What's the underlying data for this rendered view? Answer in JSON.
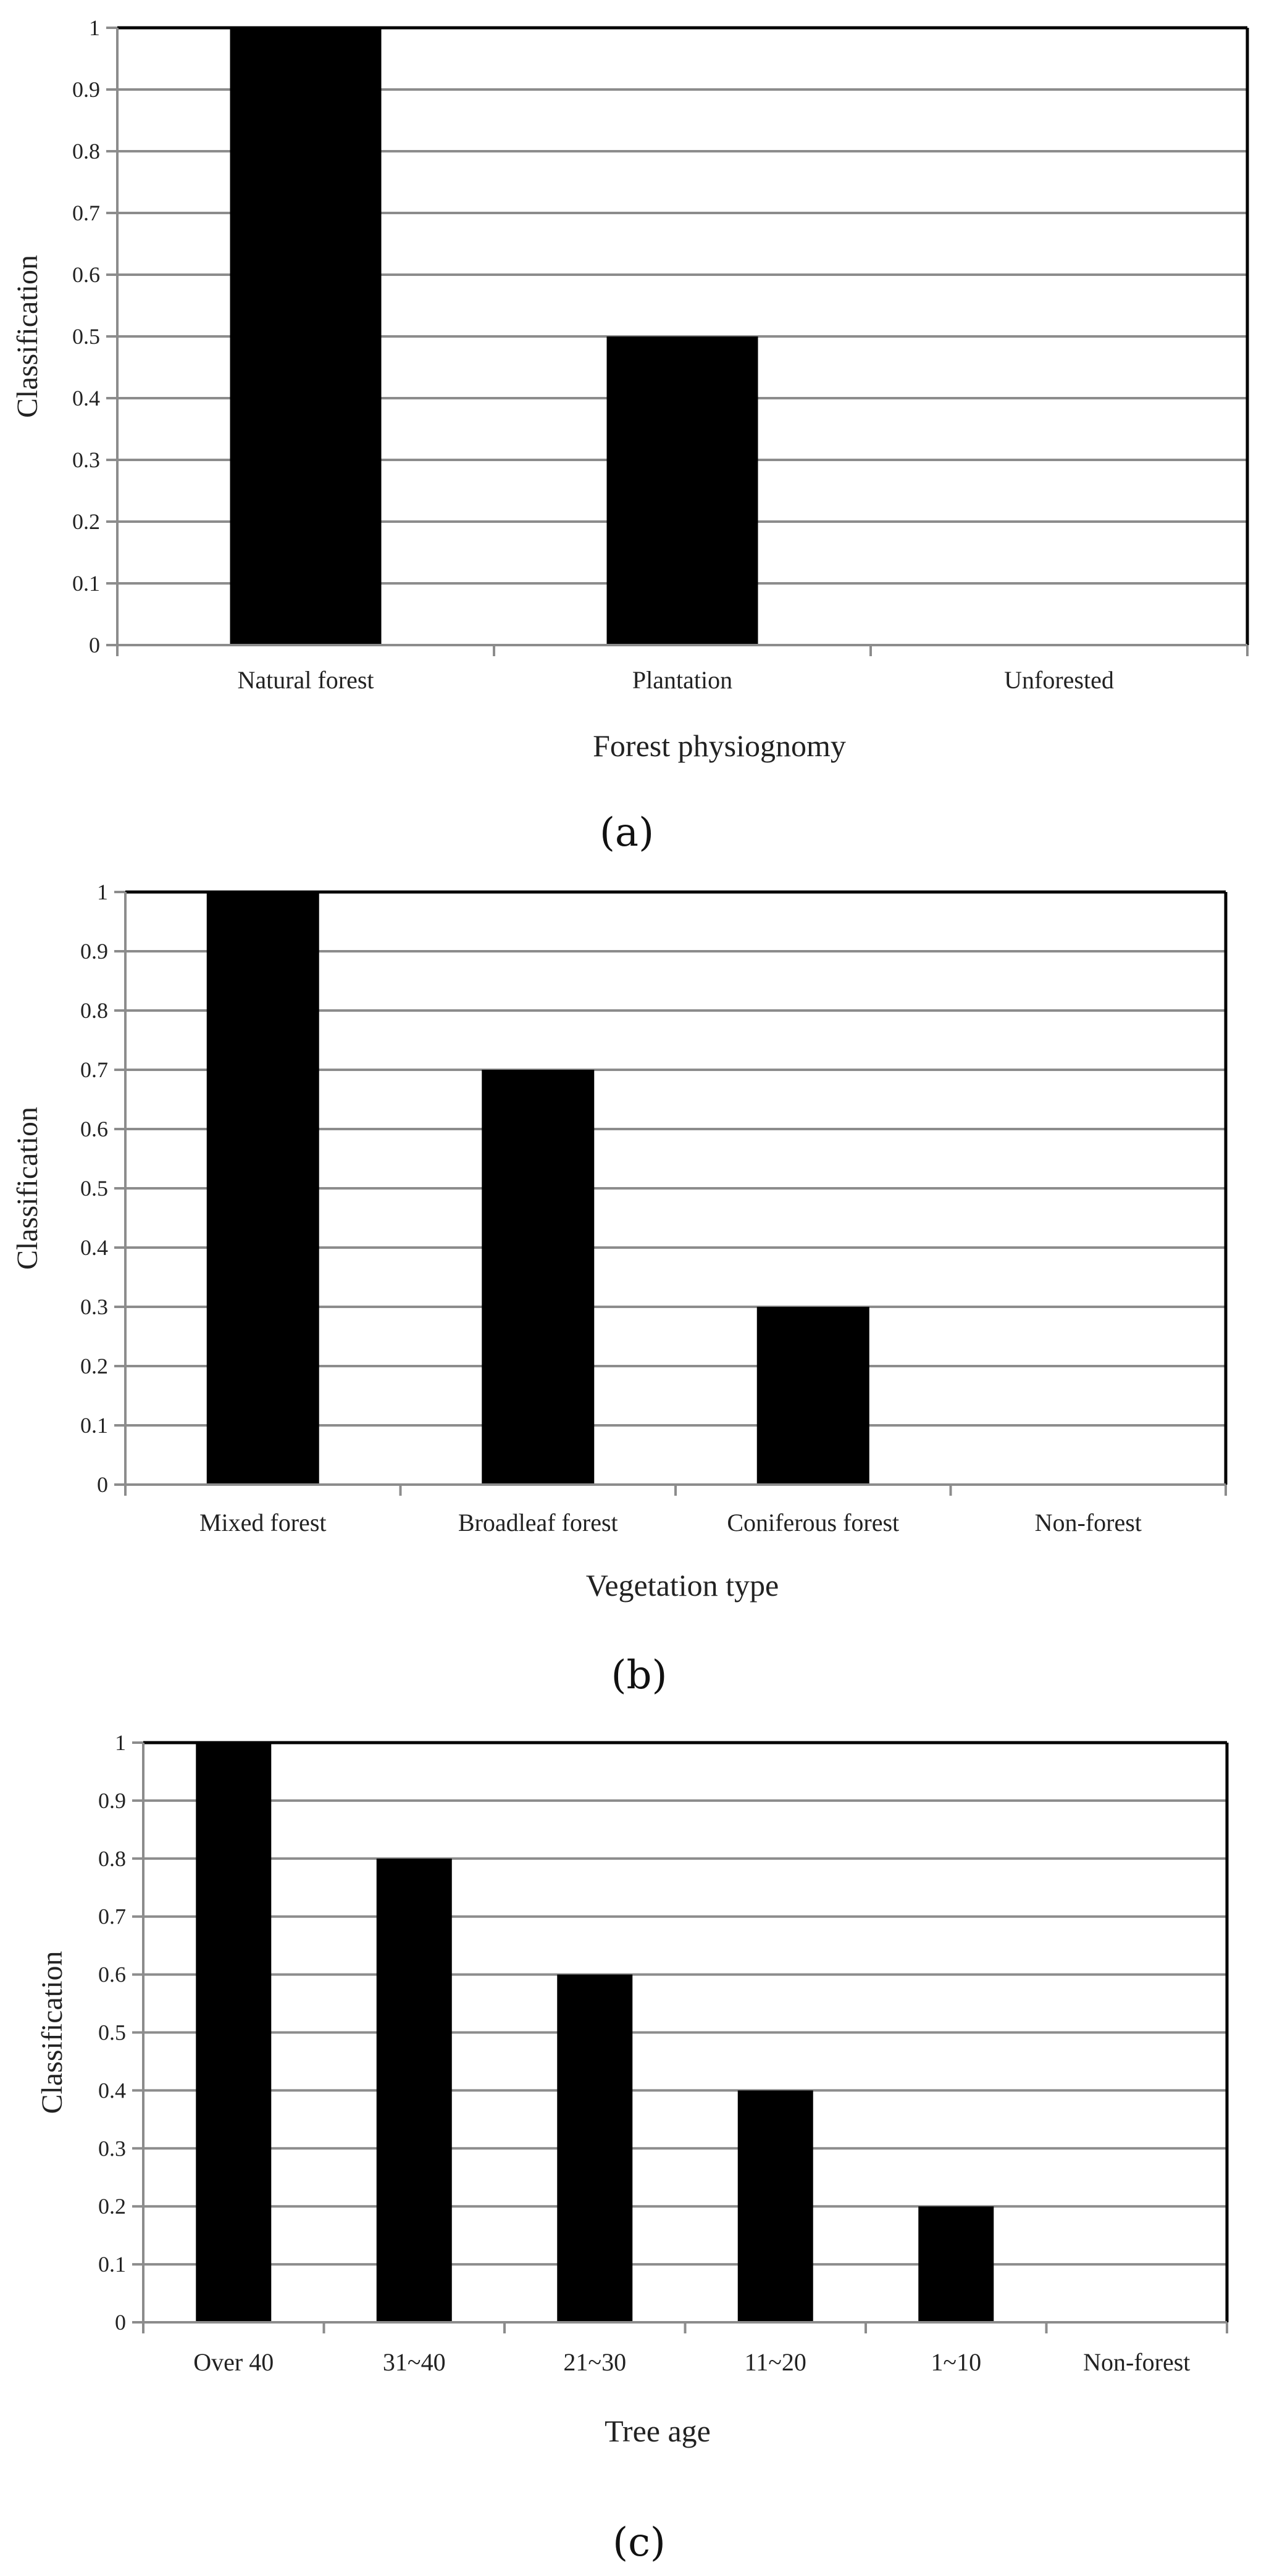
{
  "chart_data": [
    {
      "type": "bar",
      "categories": [
        "Natural forest",
        "Plantation",
        "Unforested"
      ],
      "values": [
        1,
        0.5,
        0
      ],
      "xlabel": "Forest physiognomy",
      "ylabel": "Classification",
      "ylim": [
        0,
        1
      ],
      "yticks": [
        "0",
        "0.1",
        "0.2",
        "0.3",
        "0.4",
        "0.5",
        "0.6",
        "0.7",
        "0.8",
        "0.9",
        "1"
      ],
      "grid": true,
      "panel_label": "(a)"
    },
    {
      "type": "bar",
      "categories": [
        "Mixed forest",
        "Broadleaf forest",
        "Coniferous forest",
        "Non-forest"
      ],
      "values": [
        1,
        0.7,
        0.3,
        0
      ],
      "xlabel": "Vegetation type",
      "ylabel": "Classification",
      "ylim": [
        0,
        1
      ],
      "yticks": [
        "0",
        "0.1",
        "0.2",
        "0.3",
        "0.4",
        "0.5",
        "0.6",
        "0.7",
        "0.8",
        "0.9",
        "1"
      ],
      "grid": true,
      "panel_label": "(b)"
    },
    {
      "type": "bar",
      "categories": [
        "Over 40",
        "31~40",
        "21~30",
        "11~20",
        "1~10",
        "Non-forest"
      ],
      "values": [
        1,
        0.8,
        0.6,
        0.4,
        0.2,
        0
      ],
      "xlabel": "Tree age",
      "ylabel": "Classification",
      "ylim": [
        0,
        1
      ],
      "yticks": [
        "0",
        "0.1",
        "0.2",
        "0.3",
        "0.4",
        "0.5",
        "0.6",
        "0.7",
        "0.8",
        "0.9",
        "1"
      ],
      "grid": true,
      "panel_label": "(c)"
    }
  ],
  "colors": {
    "bar": "#000000",
    "grid": "#8c8c8c",
    "frame": "#000000"
  }
}
